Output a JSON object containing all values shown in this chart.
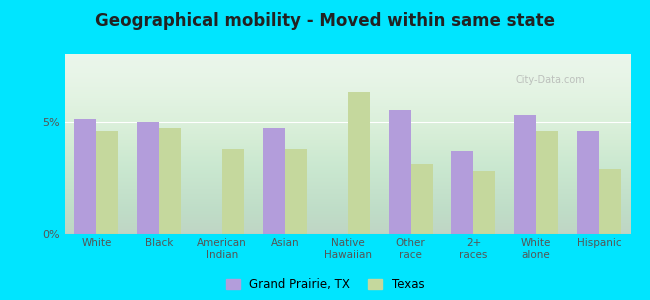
{
  "title": "Geographical mobility - Moved within same state",
  "categories": [
    "White",
    "Black",
    "American\nIndian",
    "Asian",
    "Native\nHawaiian",
    "Other\nrace",
    "2+\nraces",
    "White\nalone",
    "Hispanic"
  ],
  "grand_prairie": [
    5.1,
    5.0,
    0,
    4.7,
    0,
    5.5,
    3.7,
    5.3,
    4.6
  ],
  "texas": [
    4.6,
    4.7,
    3.8,
    3.8,
    6.3,
    3.1,
    2.8,
    4.6,
    2.9
  ],
  "bar_color_gp": "#b39ddb",
  "bar_color_tx": "#c5d89d",
  "background_color": "#e8f5e9",
  "outer_background": "#00e5ff",
  "ylim": [
    0,
    8
  ],
  "yticks": [
    0,
    5
  ],
  "ytick_labels": [
    "0%",
    "5%"
  ],
  "legend_gp": "Grand Prairie, TX",
  "legend_tx": "Texas",
  "bar_width": 0.35
}
